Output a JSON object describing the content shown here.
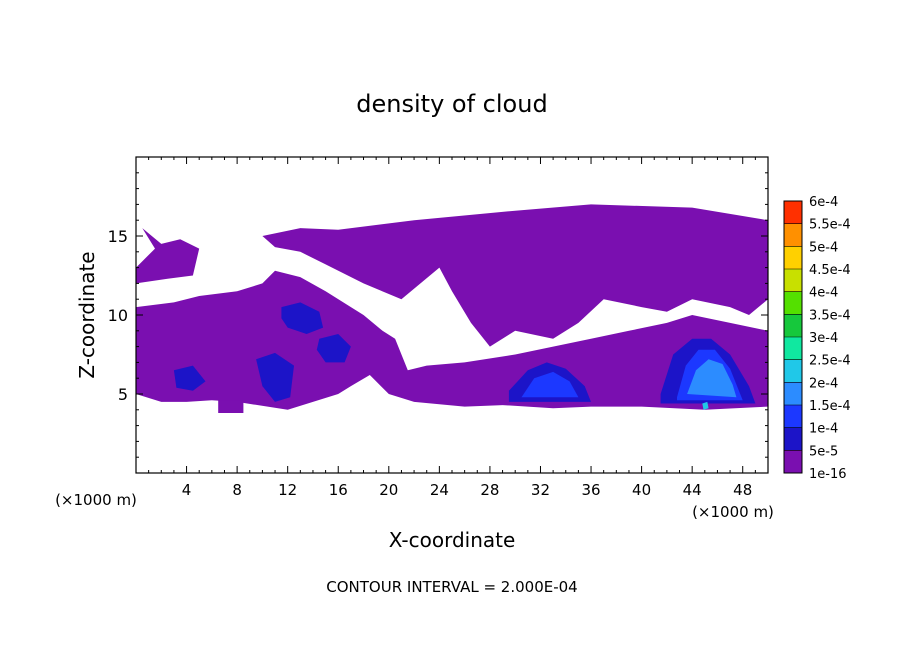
{
  "chart_data": {
    "type": "heatmap",
    "title": "density of cloud",
    "xlabel": "X-coordinate",
    "ylabel": "Z-coordinate",
    "x_unit": "(×1000 m)",
    "z_unit": "(×1000 m)",
    "footer": "CONTOUR INTERVAL = 2.000E-04",
    "xlim": [
      0,
      50
    ],
    "ylim": [
      0,
      20
    ],
    "x_ticks": [
      4,
      8,
      12,
      16,
      20,
      24,
      28,
      32,
      36,
      40,
      44,
      48
    ],
    "y_ticks": [
      5,
      10,
      15
    ],
    "colorbar": {
      "levels": [
        "1e-16",
        "5e-5",
        "1e-4",
        "1.5e-4",
        "2e-4",
        "2.5e-4",
        "3e-4",
        "3.5e-4",
        "4e-4",
        "4.5e-4",
        "5e-4",
        "5.5e-4",
        "6e-4"
      ],
      "colors": [
        "#7a0fb0",
        "#1c14c8",
        "#1c38ff",
        "#2c8cff",
        "#20c8e8",
        "#10e8a0",
        "#16c83c",
        "#54e000",
        "#c8e000",
        "#ffd000",
        "#ff9000",
        "#ff3000",
        "#ff7070"
      ]
    },
    "regions": [
      {
        "level": "1e-16",
        "polygon": [
          [
            0,
            13
          ],
          [
            1.5,
            14.2
          ],
          [
            0.5,
            15.5
          ],
          [
            2,
            14.5
          ],
          [
            3.5,
            14.8
          ],
          [
            5,
            14.2
          ],
          [
            4.5,
            12.5
          ],
          [
            2.5,
            12.3
          ],
          [
            0,
            12
          ]
        ]
      },
      {
        "level": "1e-16",
        "polygon": [
          [
            10,
            15
          ],
          [
            13,
            15.5
          ],
          [
            16,
            15.4
          ],
          [
            22,
            16
          ],
          [
            30,
            16.6
          ],
          [
            36,
            17
          ],
          [
            44,
            16.8
          ],
          [
            50,
            16
          ],
          [
            50,
            11
          ],
          [
            48.5,
            10
          ],
          [
            47,
            10.5
          ],
          [
            44,
            11
          ],
          [
            42,
            10.2
          ],
          [
            40,
            10.5
          ],
          [
            37,
            11
          ],
          [
            35,
            9.5
          ],
          [
            33,
            8.5
          ],
          [
            30,
            9
          ],
          [
            28,
            8
          ],
          [
            26.5,
            9.5
          ],
          [
            25,
            11.5
          ],
          [
            24,
            13
          ],
          [
            21,
            11
          ],
          [
            18,
            12
          ],
          [
            15,
            13.2
          ],
          [
            13,
            14
          ],
          [
            11,
            14.3
          ]
        ]
      },
      {
        "level": "1e-16",
        "polygon": [
          [
            0,
            10.5
          ],
          [
            3,
            10.8
          ],
          [
            5,
            11.2
          ],
          [
            8,
            11.5
          ],
          [
            10,
            12
          ],
          [
            11,
            12.8
          ],
          [
            13,
            12.4
          ],
          [
            15,
            11.5
          ],
          [
            17,
            10.5
          ],
          [
            18,
            10
          ],
          [
            19.5,
            9
          ],
          [
            20.5,
            8.5
          ],
          [
            21.5,
            6.5
          ],
          [
            23,
            6.8
          ],
          [
            26,
            7
          ],
          [
            30,
            7.5
          ],
          [
            33,
            8
          ],
          [
            36,
            8.5
          ],
          [
            39,
            9
          ],
          [
            42,
            9.5
          ],
          [
            44,
            10
          ],
          [
            47,
            9.5
          ],
          [
            50,
            9
          ],
          [
            50,
            4.2
          ],
          [
            45,
            4
          ],
          [
            40,
            4.2
          ],
          [
            36,
            4.2
          ],
          [
            33,
            4.1
          ],
          [
            29,
            4.3
          ],
          [
            26,
            4.2
          ],
          [
            22,
            4.5
          ],
          [
            20,
            5
          ],
          [
            18.5,
            6.2
          ],
          [
            17,
            5.5
          ],
          [
            16,
            5
          ],
          [
            12,
            4
          ],
          [
            8,
            4.5
          ],
          [
            6,
            4.6
          ],
          [
            4,
            4.5
          ],
          [
            2,
            4.5
          ],
          [
            0,
            5
          ]
        ]
      },
      {
        "level": "1e-16",
        "polygon": [
          [
            6.5,
            4.6
          ],
          [
            8.5,
            4.6
          ],
          [
            8.5,
            3.8
          ],
          [
            6.5,
            3.8
          ]
        ]
      },
      {
        "level": "5e-5",
        "polygon": [
          [
            11.5,
            10.5
          ],
          [
            13,
            10.8
          ],
          [
            14.5,
            10.2
          ],
          [
            14.8,
            9.2
          ],
          [
            13.5,
            8.8
          ],
          [
            12,
            9.2
          ],
          [
            11.5,
            9.8
          ]
        ]
      },
      {
        "level": "5e-5",
        "polygon": [
          [
            14.5,
            8.5
          ],
          [
            16,
            8.8
          ],
          [
            17,
            8
          ],
          [
            16.5,
            7
          ],
          [
            15,
            7
          ],
          [
            14.3,
            7.8
          ]
        ]
      },
      {
        "level": "5e-5",
        "polygon": [
          [
            9.5,
            7.2
          ],
          [
            11,
            7.6
          ],
          [
            12.5,
            6.8
          ],
          [
            12.2,
            4.8
          ],
          [
            11,
            4.5
          ],
          [
            10,
            5.5
          ]
        ]
      },
      {
        "level": "5e-5",
        "polygon": [
          [
            3,
            6.5
          ],
          [
            4.5,
            6.8
          ],
          [
            5.5,
            5.8
          ],
          [
            4.5,
            5.2
          ],
          [
            3.2,
            5.4
          ]
        ]
      },
      {
        "level": "5e-5",
        "polygon": [
          [
            29.5,
            5.2
          ],
          [
            31,
            6.5
          ],
          [
            32.5,
            7
          ],
          [
            34,
            6.6
          ],
          [
            35.5,
            5.5
          ],
          [
            36,
            4.5
          ],
          [
            29.5,
            4.5
          ]
        ]
      },
      {
        "level": "5e-5",
        "polygon": [
          [
            41.5,
            5
          ],
          [
            42.5,
            7.5
          ],
          [
            44,
            8.5
          ],
          [
            45.5,
            8.5
          ],
          [
            47,
            7.5
          ],
          [
            48.5,
            5.5
          ],
          [
            49,
            4.4
          ],
          [
            41.5,
            4.4
          ]
        ]
      },
      {
        "level": "1e-4",
        "polygon": [
          [
            42.8,
            4.8
          ],
          [
            43.5,
            6.8
          ],
          [
            44.5,
            7.8
          ],
          [
            45.8,
            7.8
          ],
          [
            47,
            6.6
          ],
          [
            47.8,
            5
          ],
          [
            48,
            4.6
          ],
          [
            42.8,
            4.6
          ]
        ]
      },
      {
        "level": "1e-4",
        "polygon": [
          [
            30.5,
            4.8
          ],
          [
            31.5,
            6
          ],
          [
            33,
            6.4
          ],
          [
            34.3,
            5.8
          ],
          [
            35,
            4.8
          ]
        ]
      },
      {
        "level": "1.5e-4",
        "polygon": [
          [
            43.6,
            5
          ],
          [
            44.3,
            6.5
          ],
          [
            45.3,
            7.2
          ],
          [
            46.4,
            6.9
          ],
          [
            47.2,
            5.6
          ],
          [
            47.5,
            4.8
          ]
        ]
      },
      {
        "level": "2e-4",
        "polygon": [
          [
            44.8,
            4.4
          ],
          [
            45.2,
            4.5
          ],
          [
            45.3,
            4.1
          ],
          [
            44.9,
            4
          ]
        ]
      }
    ]
  }
}
